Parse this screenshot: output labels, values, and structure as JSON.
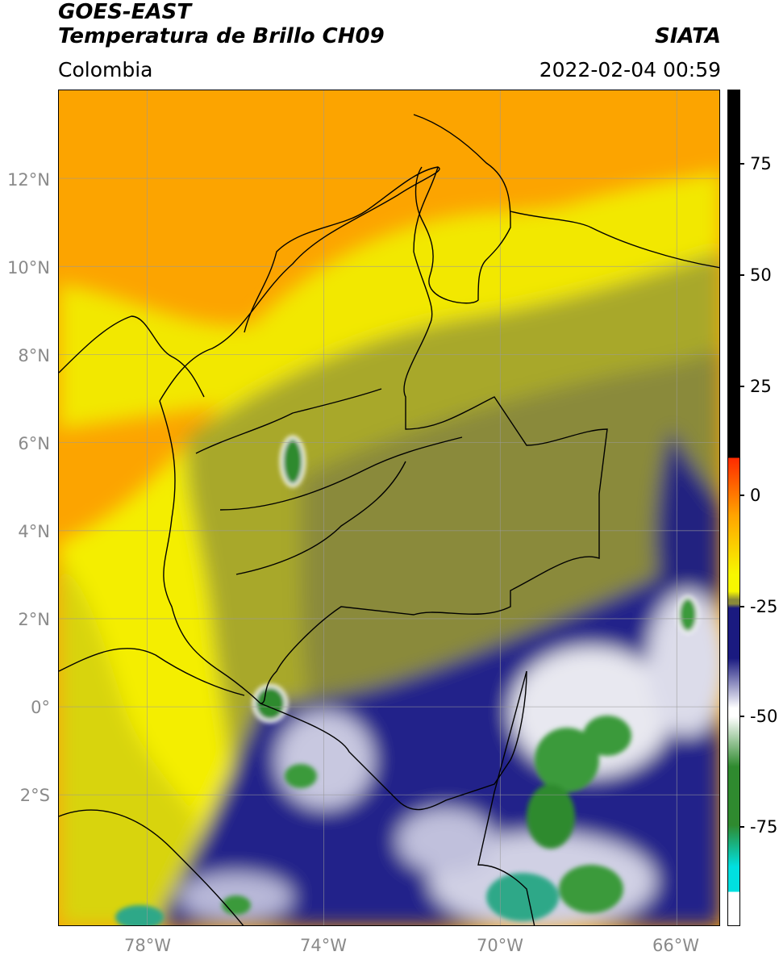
{
  "header": {
    "title_line1": "GOES-EAST",
    "title_line2": "Temperatura de Brillo CH09",
    "region": "Colombia",
    "source": "SIATA",
    "datetime": "2022-02-04 00:59"
  },
  "map": {
    "lat_labels": [
      "12°N",
      "10°N",
      "8°N",
      "6°N",
      "4°N",
      "2°N",
      "0°",
      "2°S"
    ],
    "lon_labels": [
      "78°W",
      "74°W",
      "70°W",
      "66°W"
    ],
    "grid_lats": [
      12,
      10,
      8,
      6,
      4,
      2,
      0,
      -2
    ],
    "grid_lons": [
      -78,
      -74,
      -70,
      -66
    ],
    "lon_range": [
      -80,
      -65
    ],
    "lat_range": [
      -5,
      14
    ]
  },
  "colorbar": {
    "tick_labels": [
      "75",
      "50",
      "25",
      "0",
      "-25",
      "-50",
      "-75"
    ],
    "tick_values": [
      75,
      50,
      25,
      0,
      -25,
      -50,
      -75
    ],
    "range": [
      -97,
      90
    ],
    "colors": {
      "black": "#000000",
      "red": "#ff2a00",
      "orange": "#ffa500",
      "yellow": "#f7f700",
      "olive": "#8a8a3a",
      "navy": "#1a1a80",
      "white": "#ffffff",
      "green": "#2f8a2f",
      "cyan": "#00e0e0"
    }
  }
}
